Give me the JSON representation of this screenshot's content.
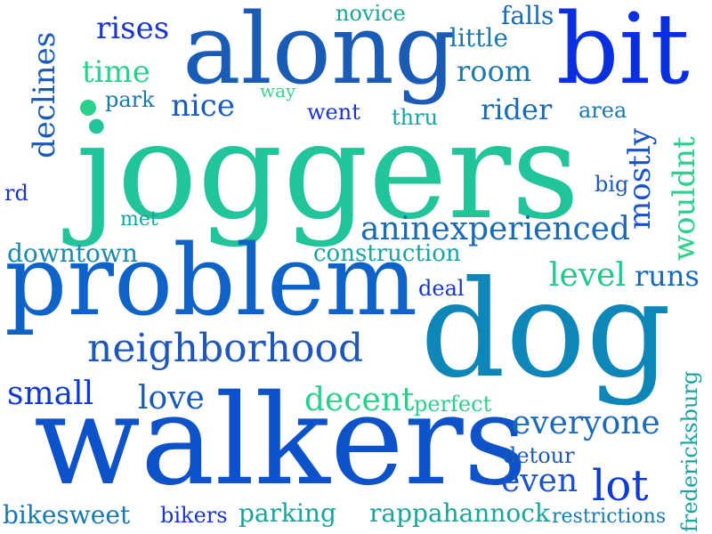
{
  "words": {
    "joggers": {
      "text": "joggers",
      "color": "#22c49a"
    },
    "dog": {
      "text": "dog",
      "color": "#0f86b8"
    },
    "walkers": {
      "text": "walkers",
      "color": "#0d52c9"
    },
    "problem": {
      "text": "problem",
      "color": "#0f62c7"
    },
    "along": {
      "text": "along",
      "color": "#1a5bb6"
    },
    "bit": {
      "text": "bit",
      "color": "#0a2fe0"
    },
    "neighborhood": {
      "text": "neighborhood",
      "color": "#1f56b9"
    },
    "aninexperienced": {
      "text": "aninexperienced",
      "color": "#1b6ab6"
    },
    "everyone": {
      "text": "everyone",
      "color": "#1d6ab7"
    },
    "lot": {
      "text": "lot",
      "color": "#0e3bd6"
    },
    "even": {
      "text": "even",
      "color": "#1a52c9"
    },
    "small": {
      "text": "small",
      "color": "#0d3ad6"
    },
    "love": {
      "text": "love",
      "color": "#1a5bb6"
    },
    "decent": {
      "text": "decent",
      "color": "#28d089"
    },
    "level": {
      "text": "level",
      "color": "#1fc98a"
    },
    "runs": {
      "text": "runs",
      "color": "#1a6ab5"
    },
    "rider": {
      "text": "rider",
      "color": "#1a6ab5"
    },
    "room": {
      "text": "room",
      "color": "#1c7aaa"
    },
    "nice": {
      "text": "nice",
      "color": "#1a5bb6"
    },
    "time": {
      "text": "time",
      "color": "#2bd08b"
    },
    "rises": {
      "text": "rises",
      "color": "#1a34cf"
    },
    "little": {
      "text": "little",
      "color": "#1a78b0"
    },
    "novice": {
      "text": "novice",
      "color": "#1aa39a"
    },
    "falls": {
      "text": "falls",
      "color": "#1a6ab5"
    },
    "park": {
      "text": "park",
      "color": "#1a78b0"
    },
    "way": {
      "text": "way",
      "color": "#39d28f"
    },
    "went": {
      "text": "went",
      "color": "#1a34cf"
    },
    "thru": {
      "text": "thru",
      "color": "#1aa3a0"
    },
    "area": {
      "text": "area",
      "color": "#1a78b0"
    },
    "big": {
      "text": "big",
      "color": "#1a5bb6"
    },
    "rd": {
      "text": "rd",
      "color": "#1a34cf"
    },
    "met": {
      "text": "met",
      "color": "#1aa3a0"
    },
    "downtown": {
      "text": "downtown",
      "color": "#1a8aa8"
    },
    "construction": {
      "text": "construction",
      "color": "#1aa3a0"
    },
    "deal": {
      "text": "deal",
      "color": "#1a34cf"
    },
    "perfect": {
      "text": "perfect",
      "color": "#2bd08b"
    },
    "detour": {
      "text": "detour",
      "color": "#1a5bb6"
    },
    "bikesweet": {
      "text": "bikesweet",
      "color": "#1a78b0"
    },
    "bikers": {
      "text": "bikers",
      "color": "#1a34cf"
    },
    "parking": {
      "text": "parking",
      "color": "#1aa39a"
    },
    "rappahannock": {
      "text": "rappahannock",
      "color": "#1aa39a"
    },
    "restrictions": {
      "text": "restrictions",
      "color": "#1a78b0"
    },
    "declines": {
      "text": "declines",
      "color": "#1a5bb6"
    },
    "mostly": {
      "text": "mostly",
      "color": "#1a52c9"
    },
    "wouldnt": {
      "text": "wouldnt",
      "color": "#2bd08b"
    },
    "fredericksburg": {
      "text": "fredericksburg",
      "color": "#1aa3a0"
    },
    "dot": {
      "color": "#2bd08b"
    }
  }
}
